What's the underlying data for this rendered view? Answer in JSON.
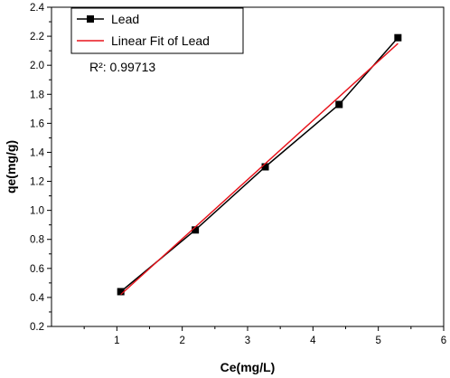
{
  "chart_data": {
    "type": "line",
    "title": "",
    "xlabel": "Ce(mg/L)",
    "ylabel": "qe(mg/g)",
    "xlim": [
      0,
      6
    ],
    "ylim": [
      0.2,
      2.4
    ],
    "xticks": [
      1,
      2,
      3,
      4,
      5,
      6
    ],
    "yticks": [
      0.2,
      0.4,
      0.6,
      0.8,
      1.0,
      1.2,
      1.4,
      1.6,
      1.8,
      2.0,
      2.2,
      2.4
    ],
    "xtick_labels": [
      "1",
      "2",
      "3",
      "4",
      "5",
      "6"
    ],
    "ytick_labels": [
      "0.2",
      "0.4",
      "0.6",
      "0.8",
      "1.0",
      "1.2",
      "1.4",
      "1.6",
      "1.8",
      "2.0",
      "2.2",
      "2.4"
    ],
    "grid": false,
    "legend_position": "top-left",
    "series": [
      {
        "name": "Lead",
        "kind": "line-with-square-markers",
        "color": "#000000",
        "x": [
          1.06,
          2.2,
          3.27,
          4.4,
          5.3
        ],
        "y": [
          0.44,
          0.865,
          1.3,
          1.73,
          2.19
        ]
      },
      {
        "name": "Linear Fit of Lead",
        "kind": "line",
        "color": "#e8141c",
        "x": [
          1.06,
          5.3
        ],
        "y": [
          0.42,
          2.15
        ]
      }
    ],
    "annotation": "R²: 0.99713"
  }
}
